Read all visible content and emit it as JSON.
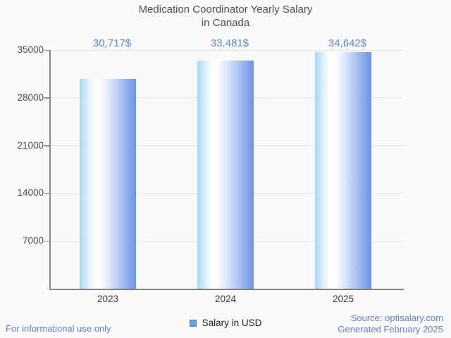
{
  "title": {
    "line1": "Medication Coordinator Yearly Salary",
    "line2": "in Canada"
  },
  "chart_data": {
    "type": "bar",
    "title": "Medication Coordinator Yearly Salary in Canada",
    "categories": [
      "2023",
      "2024",
      "2025"
    ],
    "values": [
      30717,
      33481,
      34642
    ],
    "value_labels": [
      "30,717$",
      "33,481$",
      "34,642$"
    ],
    "series_name": "Salary in USD",
    "xlabel": "",
    "ylabel": "",
    "ylim": [
      0,
      35000
    ],
    "yticks": [
      7000,
      14000,
      21000,
      28000,
      35000
    ],
    "grid": "horizontal",
    "legend_position": "bottom"
  },
  "legend": {
    "label": "Salary in USD"
  },
  "footer": {
    "left": "For informational use only",
    "source": "Source: optisalary.com",
    "generated": "Generated February 2025"
  },
  "colors": {
    "value_label": "#5a87d7",
    "footer_text": "#647dd7",
    "bar_edge_left": "#a8d7f7",
    "bar_mid": "#ffffff",
    "bar_edge_right": "#6b93e7",
    "legend_swatch": "#6fa3e0",
    "axis": "#8a8a8a",
    "grid": "#e4e4e4",
    "background": "#fafafa"
  }
}
